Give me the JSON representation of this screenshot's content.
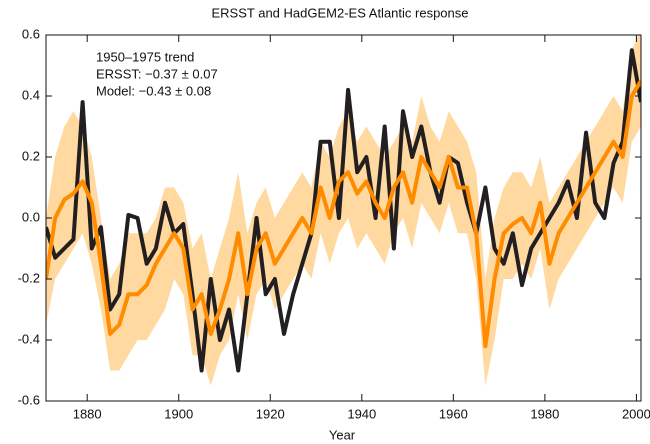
{
  "chart_data": {
    "type": "line",
    "title": "ERSST and HadGEM2-ES Atlantic response",
    "xlabel": "Year",
    "annotations": [
      "1950–1975 trend",
      "ERSST: −0.37 ± 0.07",
      "Model: −0.43 ± 0.08"
    ],
    "x": [
      1871,
      1873,
      1875,
      1877,
      1879,
      1881,
      1883,
      1885,
      1887,
      1889,
      1891,
      1893,
      1895,
      1897,
      1899,
      1901,
      1903,
      1905,
      1907,
      1909,
      1911,
      1913,
      1915,
      1917,
      1919,
      1921,
      1923,
      1925,
      1927,
      1929,
      1931,
      1933,
      1935,
      1937,
      1939,
      1941,
      1943,
      1945,
      1947,
      1949,
      1951,
      1953,
      1955,
      1957,
      1959,
      1961,
      1963,
      1965,
      1967,
      1969,
      1971,
      1973,
      1975,
      1977,
      1979,
      1981,
      1983,
      1985,
      1987,
      1989,
      1991,
      1993,
      1995,
      1997,
      1999,
      2001
    ],
    "band": {
      "color": "#ffd9a0",
      "upper": [
        0.0,
        0.2,
        0.3,
        0.35,
        0.3,
        0.2,
        0.0,
        -0.2,
        -0.15,
        -0.05,
        -0.05,
        -0.05,
        0.0,
        0.1,
        0.1,
        0.05,
        -0.1,
        -0.05,
        -0.2,
        -0.1,
        0.0,
        0.15,
        -0.05,
        0.05,
        0.1,
        0.0,
        0.05,
        0.1,
        0.15,
        0.1,
        0.25,
        0.2,
        0.3,
        0.35,
        0.25,
        0.3,
        0.25,
        0.2,
        0.25,
        0.3,
        0.25,
        0.4,
        0.3,
        0.25,
        0.35,
        0.3,
        0.25,
        0.15,
        -0.2,
        0.0,
        0.1,
        0.15,
        0.15,
        0.1,
        0.2,
        0.05,
        0.1,
        0.15,
        0.2,
        0.25,
        0.3,
        0.35,
        0.4,
        0.35,
        0.55,
        0.62
      ],
      "lower": [
        -0.35,
        -0.2,
        -0.15,
        -0.1,
        -0.05,
        -0.15,
        -0.3,
        -0.5,
        -0.5,
        -0.45,
        -0.4,
        -0.4,
        -0.35,
        -0.3,
        -0.2,
        -0.25,
        -0.45,
        -0.45,
        -0.55,
        -0.45,
        -0.4,
        -0.25,
        -0.4,
        -0.25,
        -0.2,
        -0.3,
        -0.25,
        -0.2,
        -0.15,
        -0.2,
        -0.05,
        -0.15,
        -0.05,
        0.0,
        -0.1,
        -0.05,
        -0.1,
        -0.15,
        -0.05,
        0.0,
        -0.1,
        0.05,
        0.0,
        -0.05,
        0.05,
        -0.05,
        -0.05,
        -0.2,
        -0.55,
        -0.4,
        -0.2,
        -0.2,
        -0.15,
        -0.2,
        -0.1,
        -0.3,
        -0.2,
        -0.15,
        -0.1,
        -0.05,
        0.0,
        0.05,
        0.1,
        0.05,
        0.25,
        0.3
      ]
    },
    "series": [
      {
        "color": "#231f20",
        "values": [
          -0.03,
          -0.13,
          -0.1,
          -0.07,
          0.38,
          -0.1,
          -0.03,
          -0.3,
          -0.25,
          0.01,
          0.0,
          -0.15,
          -0.1,
          0.05,
          -0.05,
          -0.02,
          -0.25,
          -0.5,
          -0.2,
          -0.4,
          -0.3,
          -0.5,
          -0.25,
          0.0,
          -0.25,
          -0.2,
          -0.38,
          -0.25,
          -0.15,
          -0.05,
          0.25,
          0.25,
          0.0,
          0.42,
          0.15,
          0.2,
          0.0,
          0.3,
          -0.1,
          0.35,
          0.2,
          0.3,
          0.15,
          0.05,
          0.2,
          0.18,
          0.05,
          -0.05,
          0.1,
          -0.1,
          -0.15,
          -0.05,
          -0.22,
          -0.1,
          -0.05,
          0.0,
          0.05,
          0.12,
          0.0,
          0.28,
          0.05,
          0.0,
          0.18,
          0.25,
          0.55,
          0.38
        ]
      },
      {
        "color": "#ff8c00",
        "values": [
          -0.2,
          0.0,
          0.06,
          0.08,
          0.12,
          0.05,
          -0.15,
          -0.38,
          -0.35,
          -0.25,
          -0.25,
          -0.22,
          -0.15,
          -0.1,
          -0.05,
          -0.1,
          -0.3,
          -0.25,
          -0.38,
          -0.3,
          -0.2,
          -0.05,
          -0.25,
          -0.1,
          -0.05,
          -0.15,
          -0.1,
          -0.05,
          0.0,
          -0.05,
          0.1,
          0.0,
          0.12,
          0.15,
          0.08,
          0.12,
          0.05,
          0.0,
          0.1,
          0.15,
          0.05,
          0.2,
          0.15,
          0.1,
          0.2,
          0.1,
          0.1,
          -0.05,
          -0.42,
          -0.2,
          -0.05,
          -0.02,
          0.0,
          -0.05,
          0.05,
          -0.15,
          -0.05,
          0.0,
          0.05,
          0.1,
          0.15,
          0.2,
          0.25,
          0.2,
          0.4,
          0.45
        ]
      }
    ],
    "xlim": [
      1871,
      2001
    ],
    "ylim": [
      -0.6,
      0.6
    ],
    "xticks": [
      1880,
      1900,
      1920,
      1940,
      1960,
      1980,
      2000
    ],
    "yticks": [
      -0.6,
      -0.4,
      -0.2,
      {
        "value": 0,
        "label": "0.0"
      },
      0.2,
      0.4,
      0.6
    ]
  }
}
